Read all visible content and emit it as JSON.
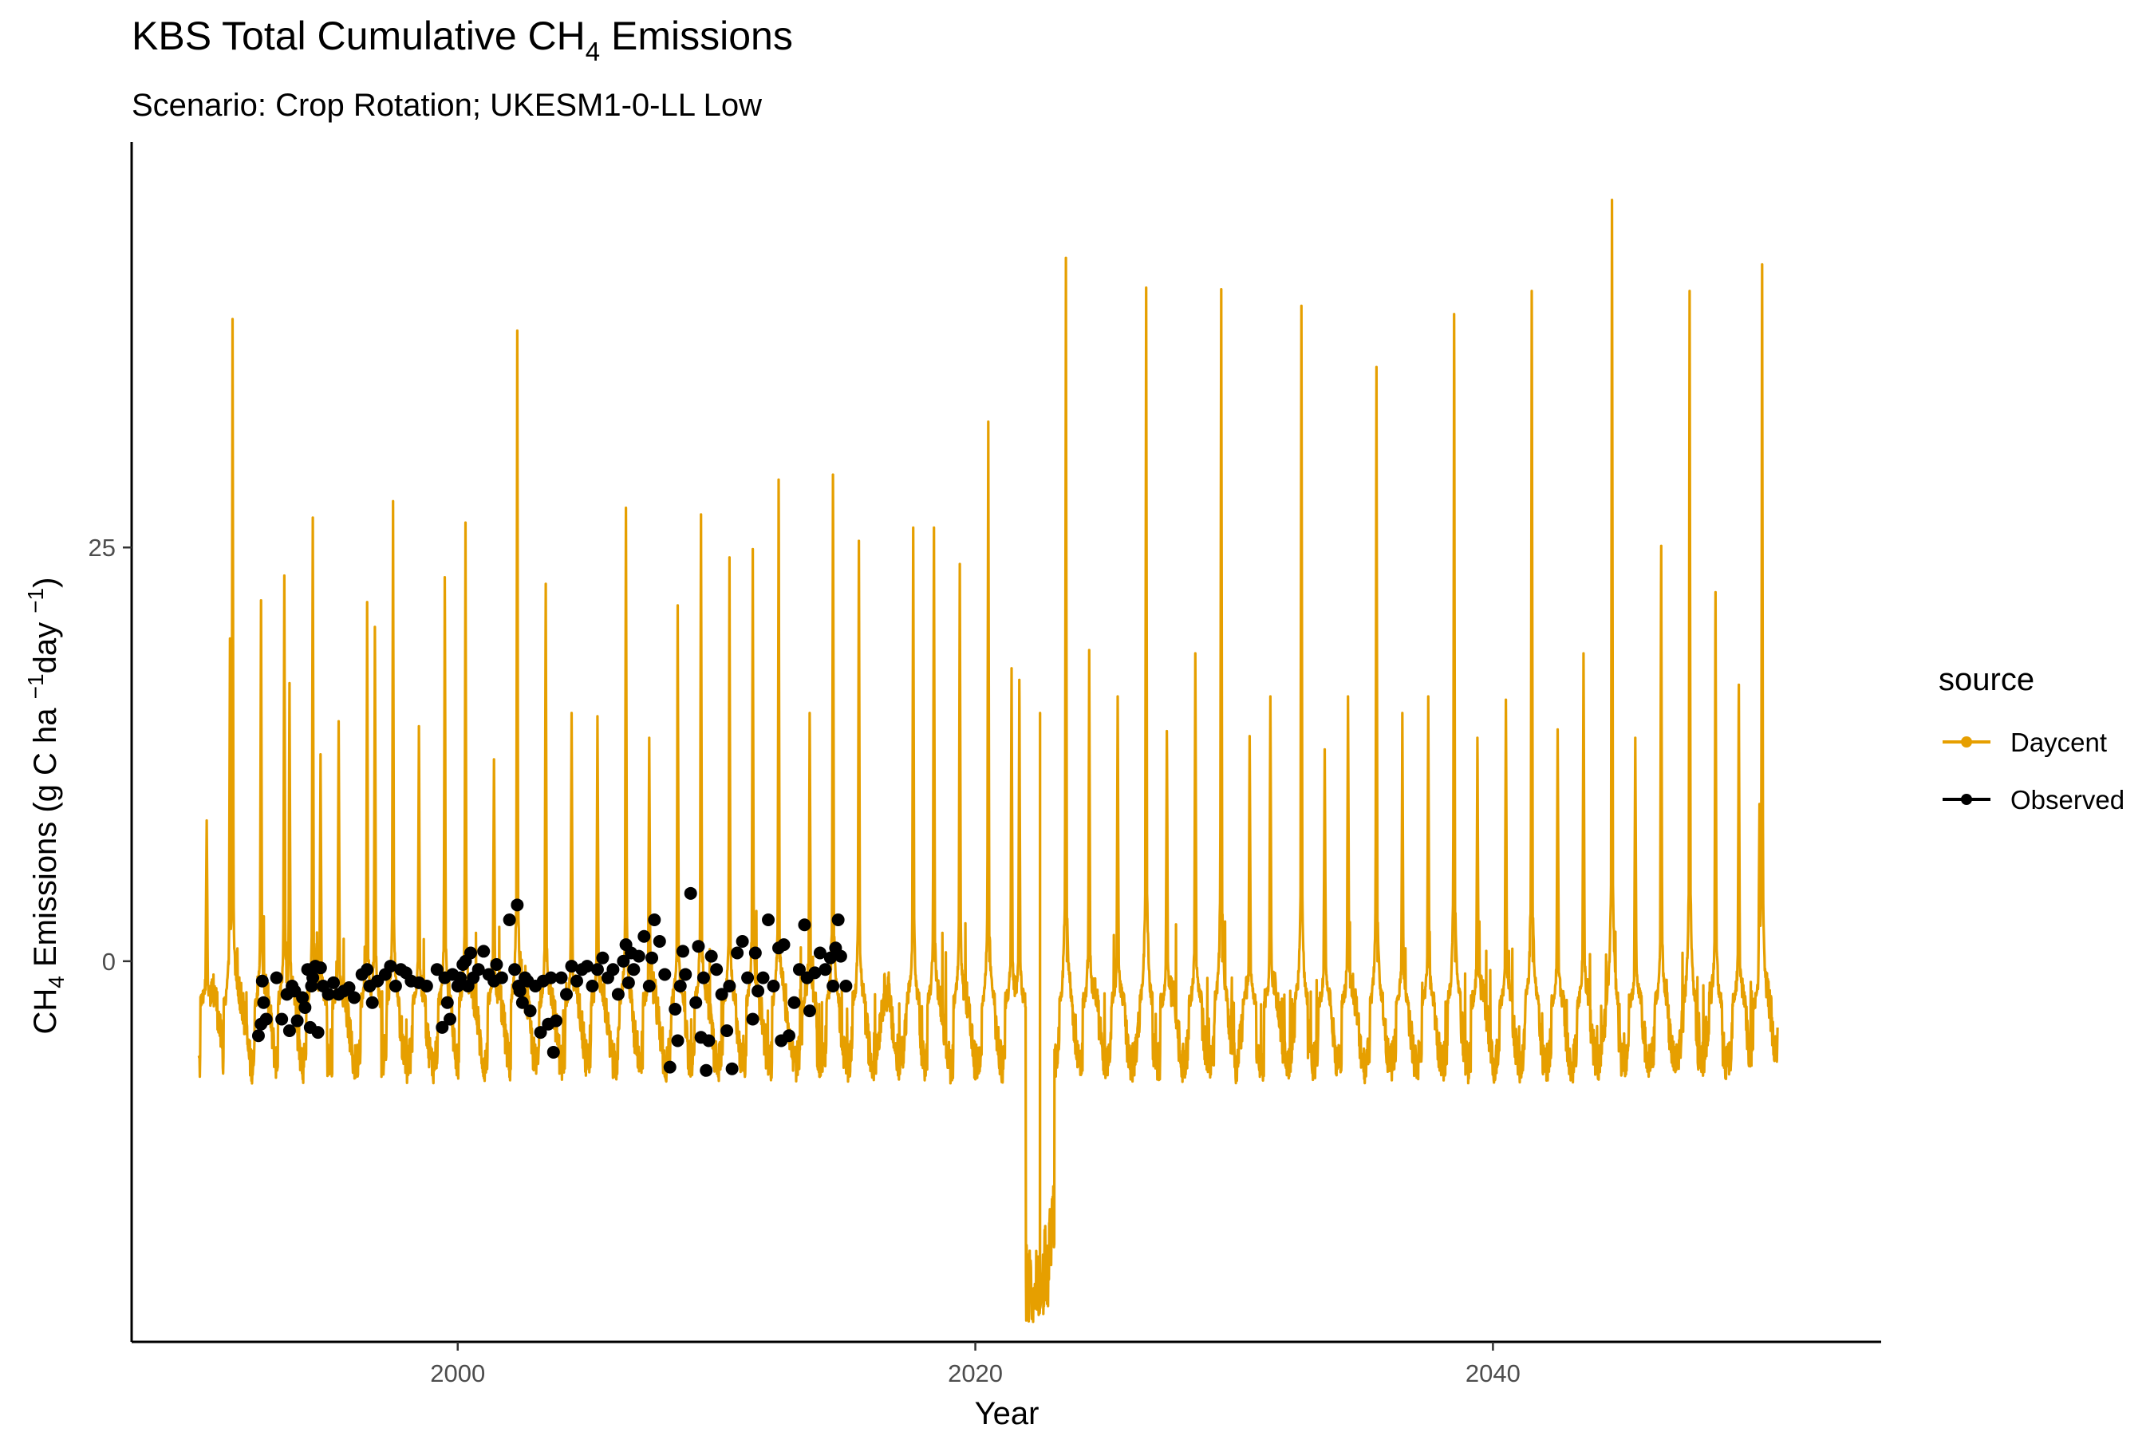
{
  "chart_data": {
    "type": "line",
    "title": {
      "main": "KBS Total Cumulative CH",
      "sub": "4",
      "end": " Emissions"
    },
    "subtitle": "Scenario: Crop Rotation; UKESM1-0-LL Low",
    "xlabel": "Year",
    "ylabel": {
      "a": "CH",
      "sub4": "4",
      "b": " Emissions (g C ha ",
      "sup1": "−1",
      "c": "day ",
      "sup2": "−1",
      "d": ")"
    },
    "xlim": [
      1987.4,
      2055.0
    ],
    "ylim": [
      -23.0,
      49.5
    ],
    "x_ticks": [
      2000,
      2020,
      2040
    ],
    "x_tick_labels": [
      "2000",
      "2020",
      "2040"
    ],
    "y_ticks": [
      0,
      25
    ],
    "y_tick_labels": [
      "0",
      "25"
    ],
    "grid": false,
    "legend": {
      "title": "source",
      "position": "right",
      "entries": [
        {
          "label": "Daycent",
          "color": "#E69F00"
        },
        {
          "label": "Observed",
          "color": "#000000"
        }
      ]
    },
    "series": [
      {
        "name": "Daycent",
        "type": "line",
        "color": "#E69F00",
        "baseline": -3.0,
        "x_range": [
          1990.0,
          2051.0
        ],
        "peaks": [
          {
            "x": 1990.3,
            "y": 8.5
          },
          {
            "x": 1991.3,
            "y": 38.8
          },
          {
            "x": 1991.2,
            "y": 19.5
          },
          {
            "x": 1992.4,
            "y": 21.8
          },
          {
            "x": 1993.3,
            "y": 23.3
          },
          {
            "x": 1993.5,
            "y": 16.8
          },
          {
            "x": 1994.4,
            "y": 26.8
          },
          {
            "x": 1994.7,
            "y": 12.5
          },
          {
            "x": 1995.4,
            "y": 14.5
          },
          {
            "x": 1996.5,
            "y": 21.7
          },
          {
            "x": 1996.8,
            "y": 20.2
          },
          {
            "x": 1997.5,
            "y": 27.8
          },
          {
            "x": 1998.5,
            "y": 14.2
          },
          {
            "x": 1999.5,
            "y": 23.2
          },
          {
            "x": 2000.3,
            "y": 26.5
          },
          {
            "x": 2001.4,
            "y": 12.2
          },
          {
            "x": 2002.3,
            "y": 38.1
          },
          {
            "x": 2003.4,
            "y": 22.8
          },
          {
            "x": 2004.4,
            "y": 15.0
          },
          {
            "x": 2005.4,
            "y": 14.8
          },
          {
            "x": 2006.5,
            "y": 27.4
          },
          {
            "x": 2007.4,
            "y": 13.5
          },
          {
            "x": 2008.5,
            "y": 21.5
          },
          {
            "x": 2009.4,
            "y": 27.0
          },
          {
            "x": 2010.5,
            "y": 24.4
          },
          {
            "x": 2011.4,
            "y": 24.9
          },
          {
            "x": 2012.4,
            "y": 29.1
          },
          {
            "x": 2013.6,
            "y": 15.0
          },
          {
            "x": 2014.5,
            "y": 29.4
          },
          {
            "x": 2015.5,
            "y": 25.4
          },
          {
            "x": 2017.6,
            "y": 26.2
          },
          {
            "x": 2018.4,
            "y": 26.2
          },
          {
            "x": 2019.4,
            "y": 24.0
          },
          {
            "x": 2020.5,
            "y": 32.6
          },
          {
            "x": 2021.4,
            "y": 17.7
          },
          {
            "x": 2021.7,
            "y": 17.0
          },
          {
            "x": 2022.5,
            "y": 15.0
          },
          {
            "x": 2023.5,
            "y": 42.5
          },
          {
            "x": 2024.4,
            "y": 18.8
          },
          {
            "x": 2025.5,
            "y": 16.0
          },
          {
            "x": 2026.6,
            "y": 40.7
          },
          {
            "x": 2027.4,
            "y": 13.9
          },
          {
            "x": 2028.5,
            "y": 18.6
          },
          {
            "x": 2029.5,
            "y": 40.6
          },
          {
            "x": 2030.6,
            "y": 13.6
          },
          {
            "x": 2031.4,
            "y": 16.0
          },
          {
            "x": 2032.6,
            "y": 39.6
          },
          {
            "x": 2033.5,
            "y": 12.8
          },
          {
            "x": 2034.4,
            "y": 16.0
          },
          {
            "x": 2035.5,
            "y": 35.9
          },
          {
            "x": 2036.5,
            "y": 15.0
          },
          {
            "x": 2037.5,
            "y": 16.0
          },
          {
            "x": 2038.5,
            "y": 39.1
          },
          {
            "x": 2039.4,
            "y": 13.5
          },
          {
            "x": 2040.5,
            "y": 15.8
          },
          {
            "x": 2041.5,
            "y": 40.5
          },
          {
            "x": 2042.5,
            "y": 14.0
          },
          {
            "x": 2043.5,
            "y": 18.6
          },
          {
            "x": 2044.6,
            "y": 46.0
          },
          {
            "x": 2045.5,
            "y": 13.5
          },
          {
            "x": 2046.5,
            "y": 25.1
          },
          {
            "x": 2047.6,
            "y": 40.5
          },
          {
            "x": 2048.6,
            "y": 22.3
          },
          {
            "x": 2049.5,
            "y": 16.7
          },
          {
            "x": 2050.4,
            "y": 42.1
          },
          {
            "x": 2050.3,
            "y": 9.5
          }
        ],
        "troughs": [
          {
            "x": 2022.3,
            "y": -19.5
          },
          {
            "x": 2022.5,
            "y": -18.5
          },
          {
            "x": 2022.7,
            "y": -16.0
          }
        ]
      },
      {
        "name": "Observed",
        "type": "scatter",
        "color": "#000000",
        "x": [
          1992.3,
          1992.4,
          1992.45,
          1992.5,
          1992.6,
          1993.0,
          1993.2,
          1993.4,
          1993.5,
          1993.6,
          1993.7,
          1993.8,
          1994.0,
          1994.1,
          1994.2,
          1994.3,
          1994.35,
          1994.4,
          1994.5,
          1994.6,
          1994.7,
          1994.8,
          1995.0,
          1995.2,
          1995.4,
          1995.6,
          1995.8,
          1996.0,
          1996.3,
          1996.5,
          1996.6,
          1996.7,
          1996.9,
          1997.2,
          1997.4,
          1997.6,
          1997.8,
          1998.0,
          1998.2,
          1998.5,
          1998.8,
          1999.2,
          1999.4,
          1999.5,
          1999.6,
          1999.7,
          1999.8,
          2000.0,
          2000.1,
          2000.2,
          2000.3,
          2000.4,
          2000.5,
          2000.6,
          2000.8,
          2001.0,
          2001.2,
          2001.4,
          2001.5,
          2001.7,
          2002.0,
          2002.2,
          2002.3,
          2002.35,
          2002.4,
          2002.5,
          2002.6,
          2002.7,
          2002.8,
          2003.0,
          2003.2,
          2003.3,
          2003.5,
          2003.6,
          2003.7,
          2003.8,
          2004.0,
          2004.2,
          2004.4,
          2004.6,
          2004.8,
          2005.0,
          2005.2,
          2005.4,
          2005.6,
          2005.8,
          2006.0,
          2006.2,
          2006.4,
          2006.5,
          2006.6,
          2006.7,
          2006.8,
          2007.0,
          2007.2,
          2007.4,
          2007.5,
          2007.6,
          2007.8,
          2008.0,
          2008.2,
          2008.4,
          2008.5,
          2008.6,
          2008.7,
          2008.8,
          2009.0,
          2009.2,
          2009.3,
          2009.4,
          2009.5,
          2009.6,
          2009.7,
          2009.8,
          2010.0,
          2010.2,
          2010.4,
          2010.5,
          2010.6,
          2010.8,
          2011.0,
          2011.2,
          2011.4,
          2011.5,
          2011.6,
          2011.8,
          2012.0,
          2012.2,
          2012.4,
          2012.5,
          2012.6,
          2012.8,
          2013.0,
          2013.2,
          2013.4,
          2013.5,
          2013.6,
          2013.8,
          2014.0,
          2014.2,
          2014.4,
          2014.5,
          2014.6,
          2014.7,
          2014.8,
          2015.0
        ],
        "y": [
          -4.5,
          -3.8,
          -1.2,
          -2.5,
          -3.5,
          -1.0,
          -3.5,
          -2.0,
          -4.2,
          -1.5,
          -1.8,
          -3.6,
          -2.2,
          -2.8,
          -0.5,
          -4.0,
          -1.5,
          -1.0,
          -0.3,
          -4.3,
          -0.4,
          -1.5,
          -2.0,
          -1.3,
          -2.0,
          -1.8,
          -1.6,
          -2.2,
          -0.8,
          -0.5,
          -1.5,
          -2.5,
          -1.2,
          -0.8,
          -0.3,
          -1.5,
          -0.5,
          -0.7,
          -1.2,
          -1.3,
          -1.5,
          -0.5,
          -4.0,
          -1.0,
          -2.5,
          -3.5,
          -0.8,
          -1.5,
          -1.0,
          -0.2,
          0.0,
          -1.5,
          0.5,
          -1.0,
          -0.5,
          0.6,
          -0.8,
          -1.2,
          -0.2,
          -1.0,
          2.5,
          -0.5,
          3.4,
          -1.5,
          -1.8,
          -2.5,
          -1.0,
          -1.2,
          -3.0,
          -1.5,
          -4.3,
          -1.2,
          -3.8,
          -1.0,
          -5.5,
          -3.6,
          -1.0,
          -2.0,
          -0.3,
          -1.2,
          -0.5,
          -0.3,
          -1.5,
          -0.5,
          0.2,
          -1.0,
          -0.5,
          -2.0,
          0.0,
          1.0,
          -1.3,
          0.5,
          -0.5,
          0.3,
          1.5,
          -1.5,
          0.2,
          2.5,
          1.2,
          -0.8,
          -6.4,
          -2.9,
          -4.8,
          -1.5,
          0.6,
          -0.8,
          4.1,
          -2.5,
          0.9,
          -4.6,
          -1.0,
          -6.6,
          -4.8,
          0.3,
          -0.5,
          -2.0,
          -4.2,
          -1.5,
          -6.5,
          0.5,
          1.2,
          -1.0,
          -3.5,
          0.5,
          -1.8,
          -1.0,
          2.5,
          -1.5,
          0.8,
          -4.8,
          1.0,
          -4.5,
          -2.5,
          -0.5,
          2.2,
          -1.0,
          -3.0,
          -0.7,
          0.5,
          -0.5,
          0.2,
          -1.5,
          0.8,
          2.5,
          0.3,
          -1.5
        ]
      }
    ]
  }
}
